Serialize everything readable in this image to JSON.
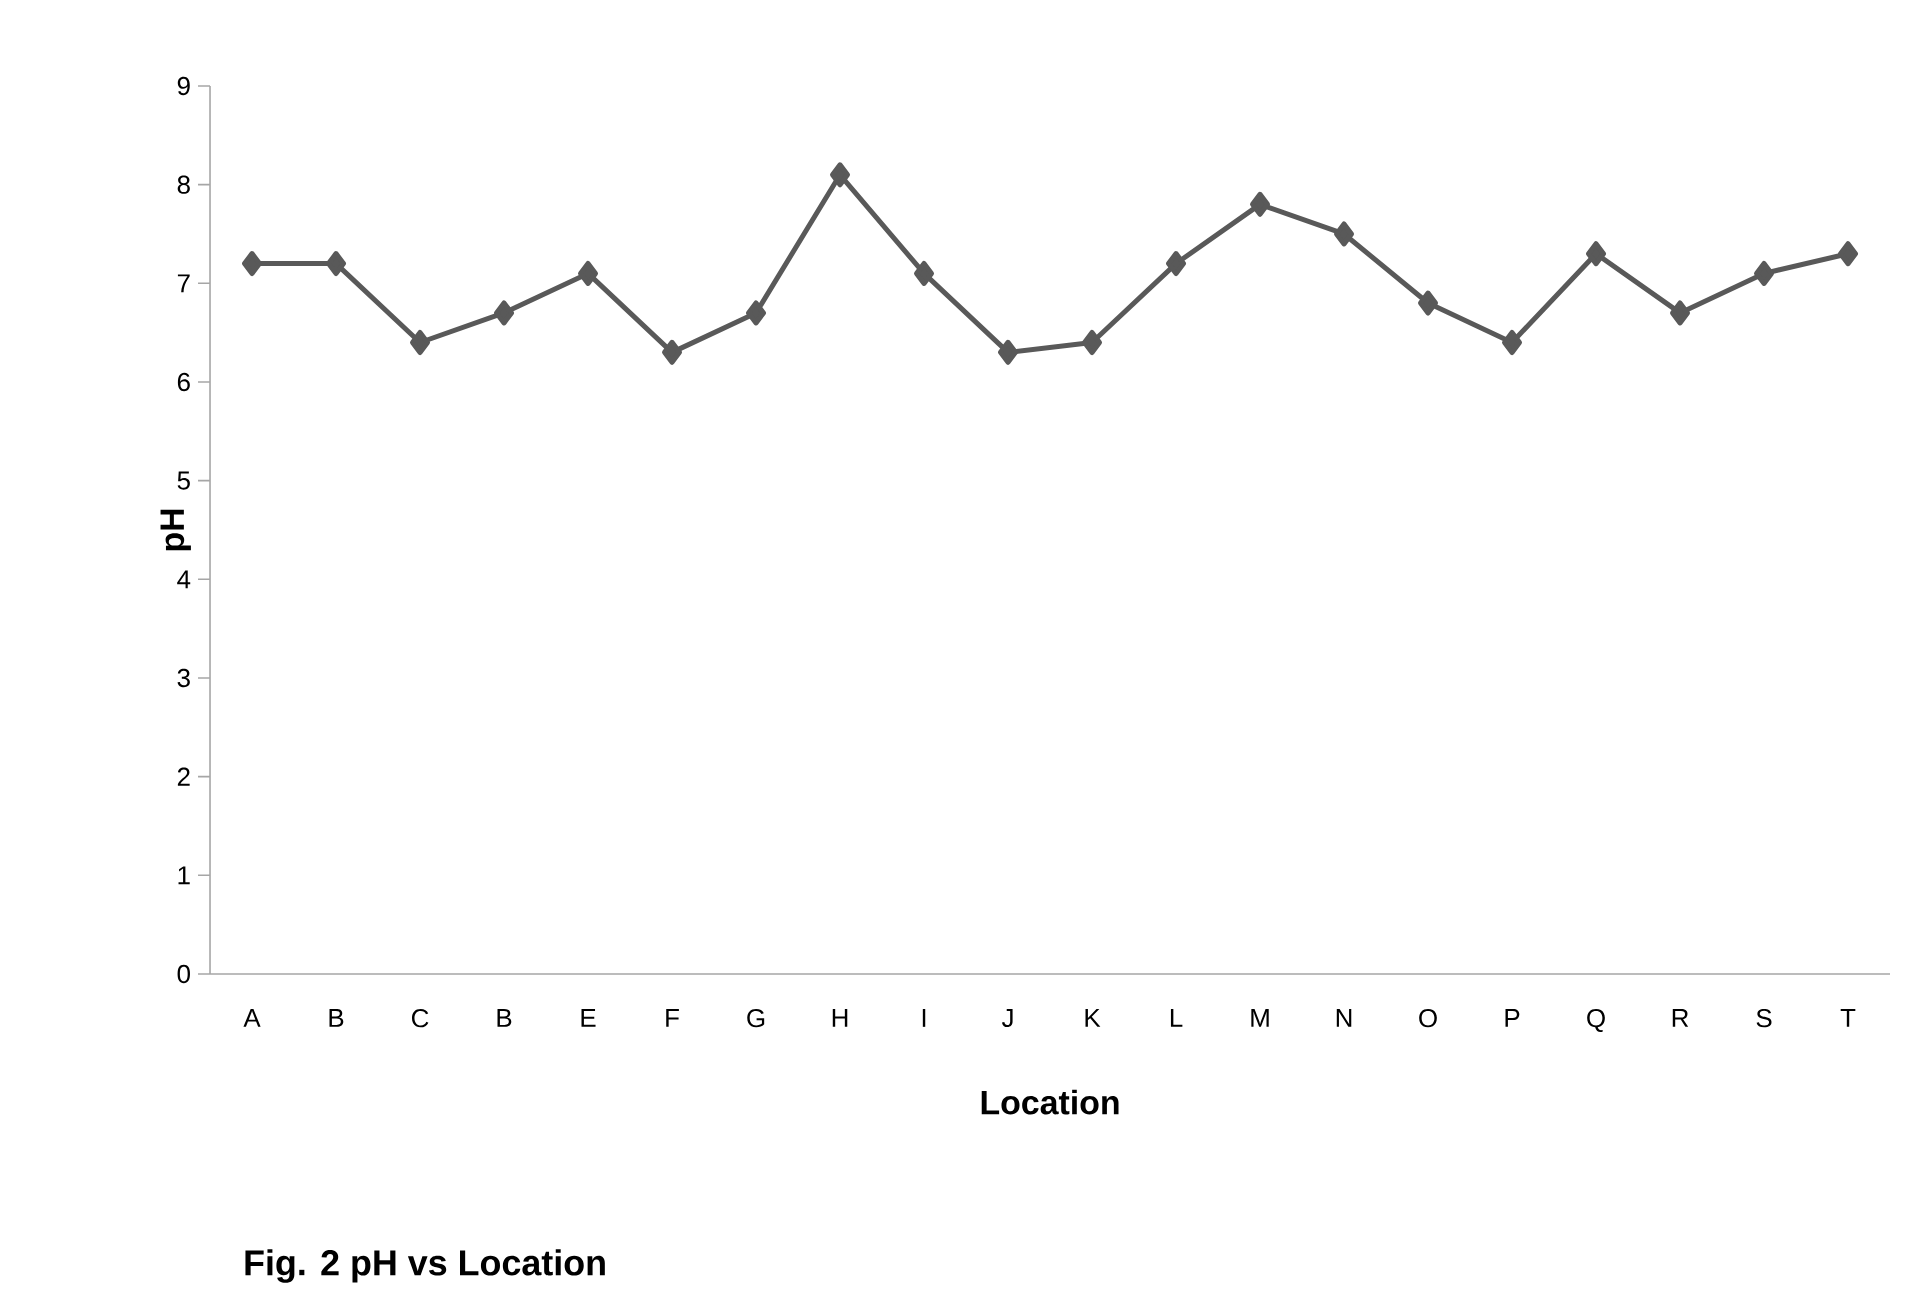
{
  "chart_data": {
    "type": "line",
    "title": "Fig. 2 pH vs Location",
    "xlabel": "Location",
    "ylabel": "pH",
    "categories": [
      "A",
      "B",
      "C",
      "B",
      "E",
      "F",
      "G",
      "H",
      "I",
      "J",
      "K",
      "L",
      "M",
      "N",
      "O",
      "P",
      "Q",
      "R",
      "S",
      "T"
    ],
    "values": [
      7.2,
      7.2,
      6.4,
      6.7,
      7.1,
      6.3,
      6.7,
      8.1,
      7.1,
      6.3,
      6.4,
      7.2,
      7.8,
      7.5,
      6.8,
      6.4,
      7.3,
      6.7,
      7.1,
      7.3
    ],
    "color": "#595959",
    "marker": "diamond",
    "line_style": "solid",
    "grid": false,
    "ylim": [
      0,
      9
    ],
    "yticks": [
      0,
      1,
      2,
      3,
      4,
      5,
      6,
      7,
      8,
      9
    ]
  }
}
